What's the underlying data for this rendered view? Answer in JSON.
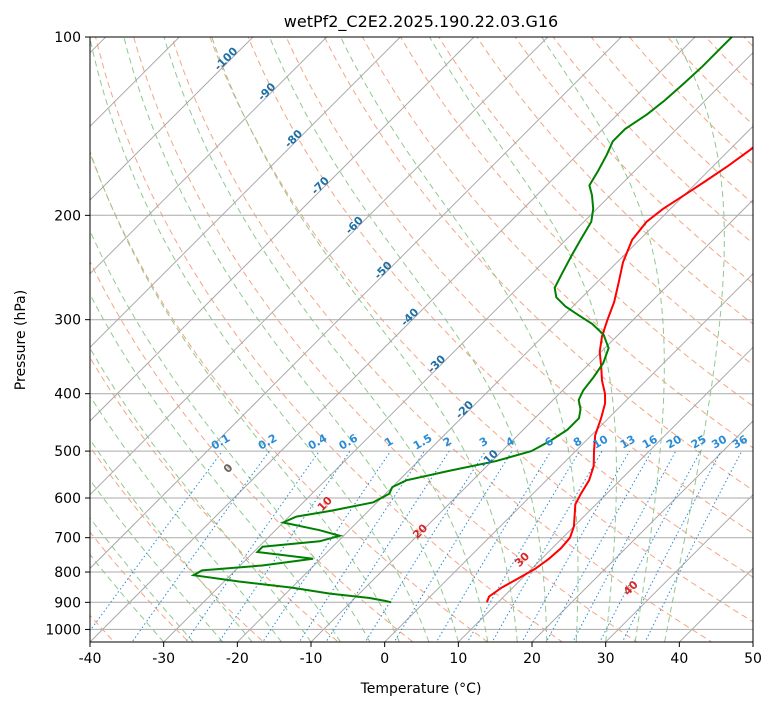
{
  "chart_data": {
    "type": "line",
    "title": "wetPf2_C2E2.2025.190.22.03.G16",
    "xlabel": "Temperature (°C)",
    "ylabel": "Pressure (hPa)",
    "xlim": [
      -40,
      50
    ],
    "ylim": [
      1050,
      100
    ],
    "y_scale": "log",
    "skew": "skew-T",
    "grid": true,
    "x_ticks": [
      -40,
      -30,
      -20,
      -10,
      0,
      10,
      20,
      30,
      40,
      50
    ],
    "y_ticks": [
      1000,
      900,
      800,
      700,
      600,
      500,
      400,
      300,
      200,
      100
    ],
    "series": [
      {
        "role": "temperature",
        "color": "#ff0000",
        "points": [
          {
            "p": 900,
            "t": 8.5
          },
          {
            "p": 880,
            "t": 8.0
          },
          {
            "p": 850,
            "t": 8.5
          },
          {
            "p": 820,
            "t": 9.5
          },
          {
            "p": 790,
            "t": 10.5
          },
          {
            "p": 760,
            "t": 11.0
          },
          {
            "p": 730,
            "t": 11.2
          },
          {
            "p": 700,
            "t": 11.0
          },
          {
            "p": 670,
            "t": 10.0
          },
          {
            "p": 640,
            "t": 8.5
          },
          {
            "p": 615,
            "t": 7.2
          },
          {
            "p": 590,
            "t": 6.5
          },
          {
            "p": 560,
            "t": 5.8
          },
          {
            "p": 530,
            "t": 4.5
          },
          {
            "p": 500,
            "t": 2.5
          },
          {
            "p": 470,
            "t": 0.5
          },
          {
            "p": 440,
            "t": -1.0
          },
          {
            "p": 415,
            "t": -2.5
          },
          {
            "p": 400,
            "t": -3.8
          },
          {
            "p": 380,
            "t": -6.0
          },
          {
            "p": 360,
            "t": -8.0
          },
          {
            "p": 340,
            "t": -10.2
          },
          {
            "p": 320,
            "t": -12.0
          },
          {
            "p": 300,
            "t": -13.5
          },
          {
            "p": 280,
            "t": -15.0
          },
          {
            "p": 260,
            "t": -17.0
          },
          {
            "p": 240,
            "t": -19.2
          },
          {
            "p": 220,
            "t": -21.0
          },
          {
            "p": 205,
            "t": -21.5
          },
          {
            "p": 195,
            "t": -21.0
          },
          {
            "p": 185,
            "t": -20.0
          },
          {
            "p": 175,
            "t": -19.0
          },
          {
            "p": 165,
            "t": -18.0
          },
          {
            "p": 155,
            "t": -17.2
          },
          {
            "p": 148,
            "t": -16.8
          },
          {
            "p": 140,
            "t": -17.0
          },
          {
            "p": 133,
            "t": -18.0
          },
          {
            "p": 128,
            "t": -19.5
          },
          {
            "p": 122,
            "t": -21.0
          },
          {
            "p": 115,
            "t": -23.0
          },
          {
            "p": 108,
            "t": -25.0
          },
          {
            "p": 100,
            "t": -27.5
          }
        ]
      },
      {
        "role": "dewpoint",
        "color": "#008000",
        "points": [
          {
            "p": 900,
            "t": -4.5
          },
          {
            "p": 895,
            "t": -5.5
          },
          {
            "p": 885,
            "t": -8.0
          },
          {
            "p": 870,
            "t": -14.0
          },
          {
            "p": 850,
            "t": -20.0
          },
          {
            "p": 830,
            "t": -28.0
          },
          {
            "p": 810,
            "t": -35.0
          },
          {
            "p": 795,
            "t": -34.5
          },
          {
            "p": 780,
            "t": -27.0
          },
          {
            "p": 760,
            "t": -21.0
          },
          {
            "p": 740,
            "t": -29.5
          },
          {
            "p": 725,
            "t": -29.5
          },
          {
            "p": 710,
            "t": -22.5
          },
          {
            "p": 695,
            "t": -20.5
          },
          {
            "p": 680,
            "t": -24.0
          },
          {
            "p": 660,
            "t": -30.0
          },
          {
            "p": 645,
            "t": -29.0
          },
          {
            "p": 630,
            "t": -25.0
          },
          {
            "p": 610,
            "t": -20.5
          },
          {
            "p": 590,
            "t": -19.5
          },
          {
            "p": 575,
            "t": -20.0
          },
          {
            "p": 560,
            "t": -19.0
          },
          {
            "p": 540,
            "t": -14.5
          },
          {
            "p": 520,
            "t": -9.5
          },
          {
            "p": 500,
            "t": -6.0
          },
          {
            "p": 480,
            "t": -4.8
          },
          {
            "p": 460,
            "t": -4.0
          },
          {
            "p": 440,
            "t": -4.0
          },
          {
            "p": 425,
            "t": -5.0
          },
          {
            "p": 410,
            "t": -6.5
          },
          {
            "p": 395,
            "t": -7.2
          },
          {
            "p": 375,
            "t": -7.6
          },
          {
            "p": 355,
            "t": -8.2
          },
          {
            "p": 335,
            "t": -9.5
          },
          {
            "p": 318,
            "t": -12.0
          },
          {
            "p": 305,
            "t": -15.0
          },
          {
            "p": 295,
            "t": -18.0
          },
          {
            "p": 285,
            "t": -21.0
          },
          {
            "p": 275,
            "t": -23.5
          },
          {
            "p": 265,
            "t": -25.0
          },
          {
            "p": 250,
            "t": -26.0
          },
          {
            "p": 235,
            "t": -27.0
          },
          {
            "p": 220,
            "t": -28.0
          },
          {
            "p": 205,
            "t": -29.0
          },
          {
            "p": 195,
            "t": -30.5
          },
          {
            "p": 185,
            "t": -32.5
          },
          {
            "p": 178,
            "t": -34.2
          },
          {
            "p": 168,
            "t": -35.0
          },
          {
            "p": 158,
            "t": -36.0
          },
          {
            "p": 150,
            "t": -37.0
          },
          {
            "p": 143,
            "t": -37.0
          },
          {
            "p": 135,
            "t": -36.0
          },
          {
            "p": 128,
            "t": -35.5
          },
          {
            "p": 120,
            "t": -35.2
          },
          {
            "p": 112,
            "t": -35.0
          },
          {
            "p": 104,
            "t": -35.0
          },
          {
            "p": 100,
            "t": -35.0
          }
        ]
      }
    ],
    "isotherm_labels": [
      "-100",
      "-90",
      "-80",
      "-70",
      "-60",
      "-50",
      "-40",
      "-30",
      "-20",
      "-10"
    ],
    "mixing_ratio_labels": [
      "0.1",
      "0.2",
      "0.4",
      "0.6",
      "1",
      "1.5",
      "2",
      "3",
      "4",
      "6",
      "8",
      "10",
      "13",
      "16",
      "20",
      "25",
      "30",
      "36"
    ],
    "dry_adiabat_labels": [
      "0",
      "10",
      "20",
      "30",
      "40"
    ],
    "colors": {
      "isotherm_label": "#1f6fa8",
      "mixing_ratio_label": "#2a8bd6",
      "dry_adiabat_label": "#d62728",
      "dry_adiabat_zero": "#666666",
      "dry_adiabat": "#f4a582",
      "moist_adiabat": "#8fc98f",
      "mixing_ratio": "#2a8bd6",
      "isotherm": "#aaaaaa",
      "isobar": "#aaaaaa"
    }
  }
}
